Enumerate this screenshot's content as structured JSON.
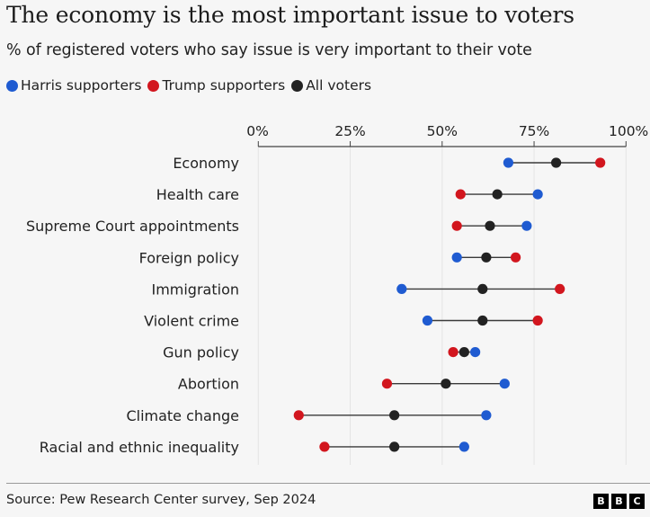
{
  "header": {
    "title": "The economy is the most important issue to voters",
    "subtitle": "% of registered voters who say issue is very important to their vote"
  },
  "legend": [
    {
      "label": "Harris supporters",
      "color": "#1f5bd1"
    },
    {
      "label": "Trump supporters",
      "color": "#d2161e"
    },
    {
      "label": "All voters",
      "color": "#222222"
    }
  ],
  "footer": {
    "source": "Source: Pew Research Center survey, Sep 2024",
    "logo_letters": [
      "B",
      "B",
      "C"
    ]
  },
  "chart_data": {
    "type": "scatter",
    "subtype": "dumbbell",
    "title": "The economy is the most important issue to voters",
    "subtitle": "% of registered voters who say issue is very important to their vote",
    "xlabel": "",
    "ylabel": "",
    "xlim": [
      0,
      100
    ],
    "x_ticks": [
      0,
      25,
      50,
      75,
      100
    ],
    "x_tick_labels": [
      "0%",
      "25%",
      "50%",
      "75%",
      "100%"
    ],
    "axis_position": "top",
    "grid": true,
    "legend_position": "top-left",
    "categories": [
      "Economy",
      "Health care",
      "Supreme Court appointments",
      "Foreign policy",
      "Immigration",
      "Violent crime",
      "Gun policy",
      "Abortion",
      "Climate change",
      "Racial and ethnic inequality"
    ],
    "series": [
      {
        "name": "Harris supporters",
        "color": "#1f5bd1",
        "values": [
          68,
          76,
          73,
          54,
          39,
          46,
          59,
          67,
          62,
          56
        ]
      },
      {
        "name": "Trump supporters",
        "color": "#d2161e",
        "values": [
          93,
          55,
          54,
          70,
          82,
          76,
          53,
          35,
          11,
          18
        ]
      },
      {
        "name": "All voters",
        "color": "#222222",
        "values": [
          81,
          65,
          63,
          62,
          61,
          61,
          56,
          51,
          37,
          37
        ]
      }
    ]
  }
}
